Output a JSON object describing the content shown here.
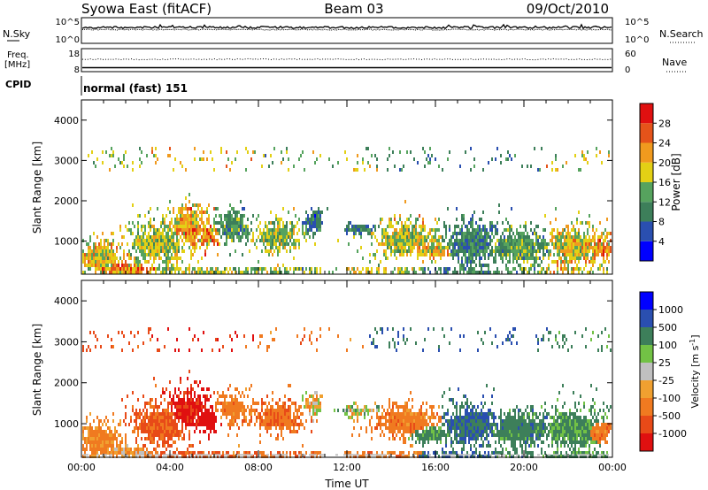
{
  "header": {
    "station": "Syowa East (fitACF)",
    "beam": "Beam 03",
    "date": "09/Oct/2010"
  },
  "noise_panel": {
    "left_label": "N.Sky",
    "right_label": "N.Search",
    "left_ticks": [
      "10^5",
      "10^0"
    ],
    "right_ticks": [
      "10^5",
      "10^0"
    ]
  },
  "freq_panel": {
    "left_label_1": "Freq.",
    "left_label_2": "[MHz]",
    "right_label": "Nave",
    "left_ticks": [
      "18",
      "8"
    ],
    "right_ticks": [
      "60",
      "0"
    ]
  },
  "cpid": {
    "label": "CPID",
    "value": "normal (fast) 151"
  },
  "colors": {
    "power_scale": [
      "#0000ff",
      "#2a4fb0",
      "#3d7f5a",
      "#56a35e",
      "#e3d015",
      "#f09a1e",
      "#e5531a",
      "#e01010"
    ],
    "velocity_scale": [
      "#0000ff",
      "#2a4fb0",
      "#3d7f5a",
      "#72c245",
      "#c0c0c0",
      "#f0a030",
      "#f07a20",
      "#e84a18",
      "#e01010"
    ]
  },
  "chart_data": [
    {
      "type": "heatmap",
      "title": "",
      "ylabel": "Slant Range [km]",
      "xlabel": "",
      "ylim": [
        180,
        4500
      ],
      "y_ticks": [
        "1000",
        "2000",
        "3000",
        "4000"
      ],
      "x_range_hours": [
        0,
        24
      ],
      "colorbar_label": "Power [dB]",
      "colorbar_ticks": [
        "4",
        "8",
        "12",
        "16",
        "20",
        "24",
        "28"
      ],
      "value_range": [
        0,
        30
      ]
    },
    {
      "type": "heatmap",
      "title": "",
      "ylabel": "Slant Range [km]",
      "xlabel": "Time UT",
      "ylim": [
        180,
        4500
      ],
      "y_ticks": [
        "1000",
        "2000",
        "3000",
        "4000"
      ],
      "x_ticks": [
        "00:00",
        "04:00",
        "08:00",
        "12:00",
        "16:00",
        "20:00",
        "00:00"
      ],
      "colorbar_label": "Velocity [m s",
      "colorbar_unit_exp": "-1",
      "colorbar_ticks": [
        "1000",
        "500",
        "100",
        "25",
        "-25",
        "-100",
        "-500",
        "-1000"
      ],
      "value_range": [
        -1200,
        1200
      ]
    }
  ]
}
